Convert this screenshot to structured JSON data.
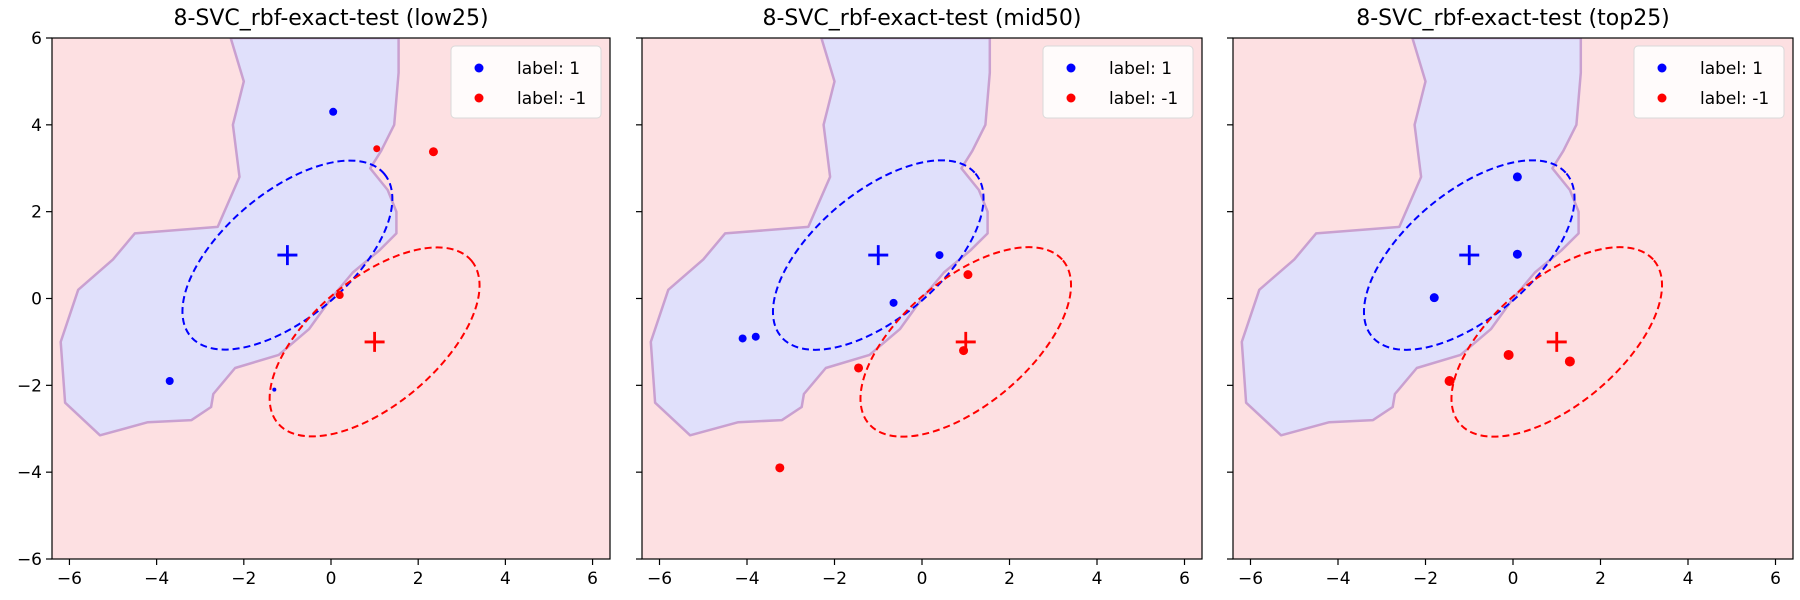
{
  "chart_data": [
    {
      "type": "scatter",
      "title": "8-SVC_rbf-exact-test (low25)",
      "xlabel": "",
      "ylabel": "",
      "xlim": [
        -6.4,
        6.4
      ],
      "ylim": [
        -6,
        6
      ],
      "xticks": [
        -6,
        -4,
        -2,
        0,
        2,
        4,
        6
      ],
      "yticks": [
        -6,
        -4,
        -2,
        0,
        2,
        4,
        6
      ],
      "show_yticklabels": true,
      "legend": {
        "position": "top-right",
        "entries": [
          "label: 1",
          "label: -1"
        ]
      },
      "class_means": [
        {
          "label": "1",
          "center": [
            -1,
            1
          ],
          "color": "#0000ff"
        },
        {
          "label": "-1",
          "center": [
            1,
            -1
          ],
          "color": "#ff0000"
        }
      ],
      "ellipses": [
        {
          "center": [
            -1,
            1
          ],
          "rx": 2.9,
          "ry": 1.45,
          "angle_deg": 40,
          "color": "#0000ff"
        },
        {
          "center": [
            1,
            -1
          ],
          "rx": 2.9,
          "ry": 1.45,
          "angle_deg": 40,
          "color": "#ff0000"
        }
      ],
      "series": [
        {
          "name": "label: 1",
          "color": "#0000ff",
          "points": [
            [
              0.05,
              4.3
            ],
            [
              -3.7,
              -1.9
            ],
            [
              -1.3,
              -2.1
            ]
          ],
          "sizes": [
            4,
            4,
            2
          ]
        },
        {
          "name": "label: -1",
          "color": "#ff0000",
          "points": [
            [
              1.05,
              3.45
            ],
            [
              2.35,
              3.38
            ],
            [
              0.2,
              0.08
            ]
          ],
          "sizes": [
            3.5,
            4.5,
            4
          ]
        }
      ]
    },
    {
      "type": "scatter",
      "title": "8-SVC_rbf-exact-test (mid50)",
      "xlabel": "",
      "ylabel": "",
      "xlim": [
        -6.4,
        6.4
      ],
      "ylim": [
        -6,
        6
      ],
      "xticks": [
        -6,
        -4,
        -2,
        0,
        2,
        4,
        6
      ],
      "yticks": [
        -6,
        -4,
        -2,
        0,
        2,
        4,
        6
      ],
      "show_yticklabels": false,
      "legend": {
        "position": "top-right",
        "entries": [
          "label: 1",
          "label: -1"
        ]
      },
      "class_means": [
        {
          "label": "1",
          "center": [
            -1,
            1
          ],
          "color": "#0000ff"
        },
        {
          "label": "-1",
          "center": [
            1,
            -1
          ],
          "color": "#ff0000"
        }
      ],
      "ellipses": [
        {
          "center": [
            -1,
            1
          ],
          "rx": 2.9,
          "ry": 1.45,
          "angle_deg": 40,
          "color": "#0000ff"
        },
        {
          "center": [
            1,
            -1
          ],
          "rx": 2.9,
          "ry": 1.45,
          "angle_deg": 40,
          "color": "#ff0000"
        }
      ],
      "series": [
        {
          "name": "label: 1",
          "color": "#0000ff",
          "points": [
            [
              0.4,
              1.0
            ],
            [
              -0.65,
              -0.1
            ],
            [
              -4.1,
              -0.92
            ],
            [
              -3.8,
              -0.88
            ]
          ],
          "sizes": [
            4,
            4,
            4,
            4
          ]
        },
        {
          "name": "label: -1",
          "color": "#ff0000",
          "points": [
            [
              1.05,
              0.55
            ],
            [
              0.95,
              -1.2
            ],
            [
              -1.45,
              -1.6
            ],
            [
              -3.25,
              -3.9
            ]
          ],
          "sizes": [
            4.5,
            4.5,
            4.5,
            4.5
          ]
        }
      ]
    },
    {
      "type": "scatter",
      "title": "8-SVC_rbf-exact-test (top25)",
      "xlabel": "",
      "ylabel": "",
      "xlim": [
        -6.4,
        6.4
      ],
      "ylim": [
        -6,
        6
      ],
      "xticks": [
        -6,
        -4,
        -2,
        0,
        2,
        4,
        6
      ],
      "yticks": [
        -6,
        -4,
        -2,
        0,
        2,
        4,
        6
      ],
      "show_yticklabels": false,
      "legend": {
        "position": "top-right",
        "entries": [
          "label: 1",
          "label: -1"
        ]
      },
      "class_means": [
        {
          "label": "1",
          "center": [
            -1,
            1
          ],
          "color": "#0000ff"
        },
        {
          "label": "-1",
          "center": [
            1,
            -1
          ],
          "color": "#ff0000"
        }
      ],
      "ellipses": [
        {
          "center": [
            -1,
            1
          ],
          "rx": 2.9,
          "ry": 1.45,
          "angle_deg": 40,
          "color": "#0000ff"
        },
        {
          "center": [
            1,
            -1
          ],
          "rx": 2.9,
          "ry": 1.45,
          "angle_deg": 40,
          "color": "#ff0000"
        }
      ],
      "series": [
        {
          "name": "label: 1",
          "color": "#0000ff",
          "points": [
            [
              0.1,
              2.8
            ],
            [
              0.1,
              1.02
            ],
            [
              -1.8,
              0.02
            ]
          ],
          "sizes": [
            4.5,
            4.5,
            4.5
          ]
        },
        {
          "name": "label: -1",
          "color": "#ff0000",
          "points": [
            [
              -0.1,
              -1.3
            ],
            [
              1.3,
              -1.45
            ],
            [
              -1.45,
              -1.9
            ]
          ],
          "sizes": [
            5,
            5,
            5
          ]
        }
      ]
    }
  ],
  "decision_region": {
    "positive_color": "#e0e0fb",
    "negative_color": "#fde0e2",
    "boundary_color": "#c9a0d0",
    "positive_polygon": [
      [
        -2.3,
        6.0
      ],
      [
        1.55,
        6.0
      ],
      [
        1.55,
        5.2
      ],
      [
        1.45,
        4.0
      ],
      [
        1.15,
        3.4
      ],
      [
        0.9,
        3.0
      ],
      [
        1.3,
        2.5
      ],
      [
        1.5,
        2.0
      ],
      [
        1.5,
        1.5
      ],
      [
        1.1,
        1.1
      ],
      [
        0.5,
        0.6
      ],
      [
        0.0,
        0.0
      ],
      [
        -0.5,
        -0.7
      ],
      [
        -1.2,
        -1.3
      ],
      [
        -2.2,
        -1.6
      ],
      [
        -2.7,
        -2.2
      ],
      [
        -2.75,
        -2.5
      ],
      [
        -3.2,
        -2.8
      ],
      [
        -4.2,
        -2.85
      ],
      [
        -5.3,
        -3.15
      ],
      [
        -6.1,
        -2.4
      ],
      [
        -6.2,
        -1.0
      ],
      [
        -5.8,
        0.2
      ],
      [
        -5.0,
        0.9
      ],
      [
        -4.5,
        1.5
      ],
      [
        -2.6,
        1.65
      ],
      [
        -2.1,
        2.8
      ],
      [
        -2.25,
        4.0
      ],
      [
        -2.0,
        5.0
      ]
    ]
  }
}
